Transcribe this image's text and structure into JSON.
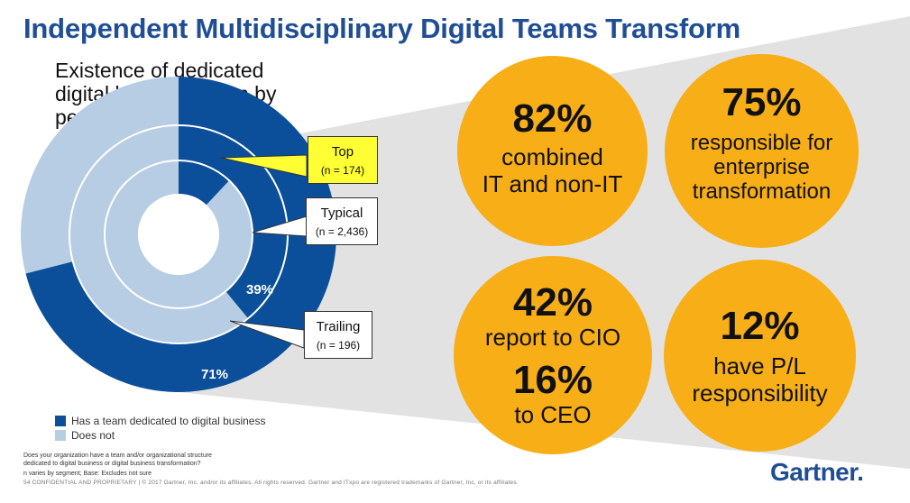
{
  "title": "Independent Multidisciplinary Digital Teams Transform",
  "chart_data": {
    "type": "donut",
    "title": "Existence of dedicated digital business team by performance group",
    "rings": [
      {
        "name": "Top",
        "n": "(n = 174)",
        "value": 12,
        "label": "12%"
      },
      {
        "name": "Typical",
        "n": "(n = 2,436)",
        "value": 39,
        "label": "39%"
      },
      {
        "name": "Trailing",
        "n": "(n = 196)",
        "value": 71,
        "label": "71%"
      }
    ],
    "legend": [
      {
        "label": "Has a team dedicated to digital business",
        "color": "#0b4f9b"
      },
      {
        "label": "Does not",
        "color": "#b7cde4"
      }
    ]
  },
  "callouts": {
    "top": {
      "label": "Top",
      "n": "(n = 174)"
    },
    "typical": {
      "label": "Typical",
      "n": "(n = 2,436)"
    },
    "trailing": {
      "label": "Trailing",
      "n": "(n = 196)"
    }
  },
  "stats": {
    "c1": {
      "big": "82%",
      "line1": "combined",
      "line2": "IT and non-IT"
    },
    "c2": {
      "big": "75%",
      "line1": "responsible for",
      "line2": "enterprise",
      "line3": "transformation"
    },
    "c3": {
      "big1": "42%",
      "line1": "report to CIO",
      "big2": "16%",
      "line2": "to CEO"
    },
    "c4": {
      "big": "12%",
      "line1": "have P/L",
      "line2": "responsibility"
    }
  },
  "footnote": {
    "q1": "Does your organization have a team and/or organizational structure",
    "q2": "dedicated to digital business or digital business transformation?",
    "n": "n varies by segment; Base: Excludes not sure"
  },
  "copyright": "54   CONFIDENTIAL AND PROPRIETARY  |  © 2017 Gartner, Inc. and/or its affiliates. All rights reserved. Gartner and ITxpo are registered trademarks of Gartner, Inc. or its affiliates.",
  "logo": "Gartner",
  "colors": {
    "dark": "#0b4f9b",
    "light": "#b7cde4",
    "gold": "#f8ae16",
    "title": "#1f4e96"
  }
}
